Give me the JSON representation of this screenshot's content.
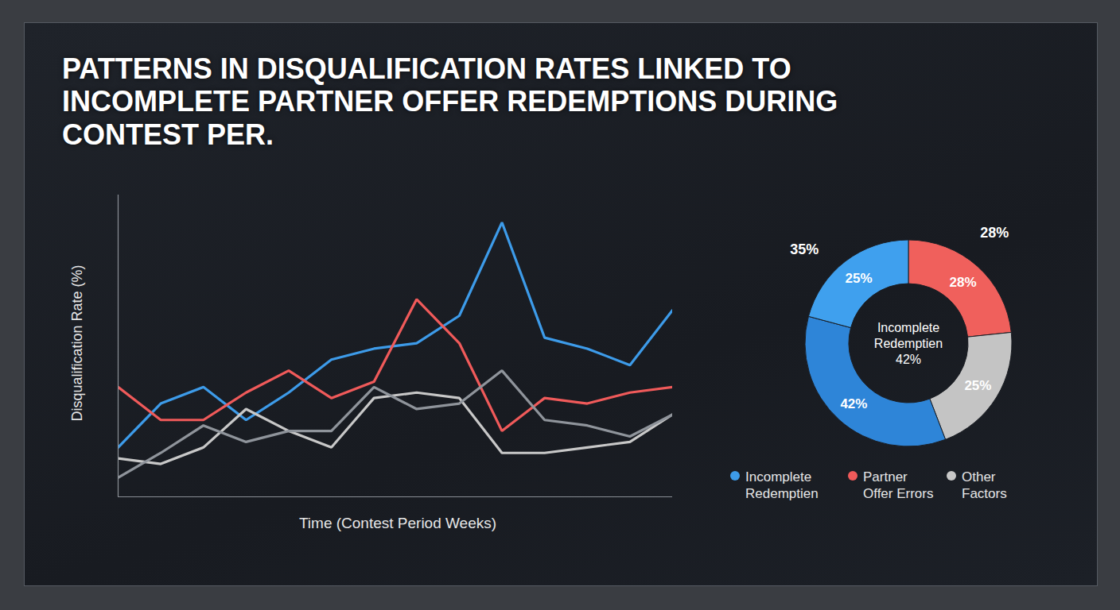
{
  "chart_data": [
    {
      "type": "line",
      "title": "PATTERNS IN DISQUALIFICATION RATES LINKED TO INCOMPLETE PARTNER OFFER REDEMPTIONS DURING CONTEST PER.",
      "x_label": "Time (Contest Period Weeks)",
      "y_label": "Disqualification Rate (%)",
      "x": [
        1,
        2,
        3,
        4,
        5,
        6,
        7,
        8,
        9,
        10,
        11,
        12,
        13,
        14
      ],
      "xlim": [
        1,
        14
      ],
      "ylim": [
        0,
        55
      ],
      "tick_labels": false,
      "grid": false,
      "legend": "bottom-right",
      "series": [
        {
          "name": "Incomplete Redemptien",
          "color": "#3d9be9",
          "values": [
            9,
            17,
            20,
            14,
            19,
            25,
            27,
            28,
            33,
            50,
            29,
            27,
            24,
            34
          ]
        },
        {
          "name": "Partner Offer Errors",
          "color": "#f05a5a",
          "values": [
            20,
            14,
            14,
            19,
            23,
            18,
            21,
            36,
            28,
            12,
            18,
            17,
            19,
            20
          ]
        },
        {
          "name": "Other Factors",
          "color": "#c8c8c8",
          "values": [
            7,
            6,
            9,
            16,
            12,
            9,
            18,
            19,
            18,
            8,
            8,
            9,
            10,
            15
          ]
        },
        {
          "color": "#8f949b",
          "values": [
            3.5,
            8,
            13,
            10,
            12,
            12,
            20,
            16,
            17,
            23,
            14,
            13,
            11,
            15
          ]
        }
      ]
    },
    {
      "type": "pie",
      "values": [
        28,
        25,
        42,
        25
      ],
      "colors": [
        "#f0605c",
        "#c4c4c4",
        "#2e85d8",
        "#3fa0ee"
      ],
      "value_labels": [
        "28%",
        "25%",
        "42%",
        "25%"
      ],
      "data_labels": true,
      "annotations": [
        {
          "text": "35%"
        },
        {
          "text": "28%"
        },
        {
          "text": "Incomplete Redemptien 42%"
        }
      ]
    }
  ]
}
